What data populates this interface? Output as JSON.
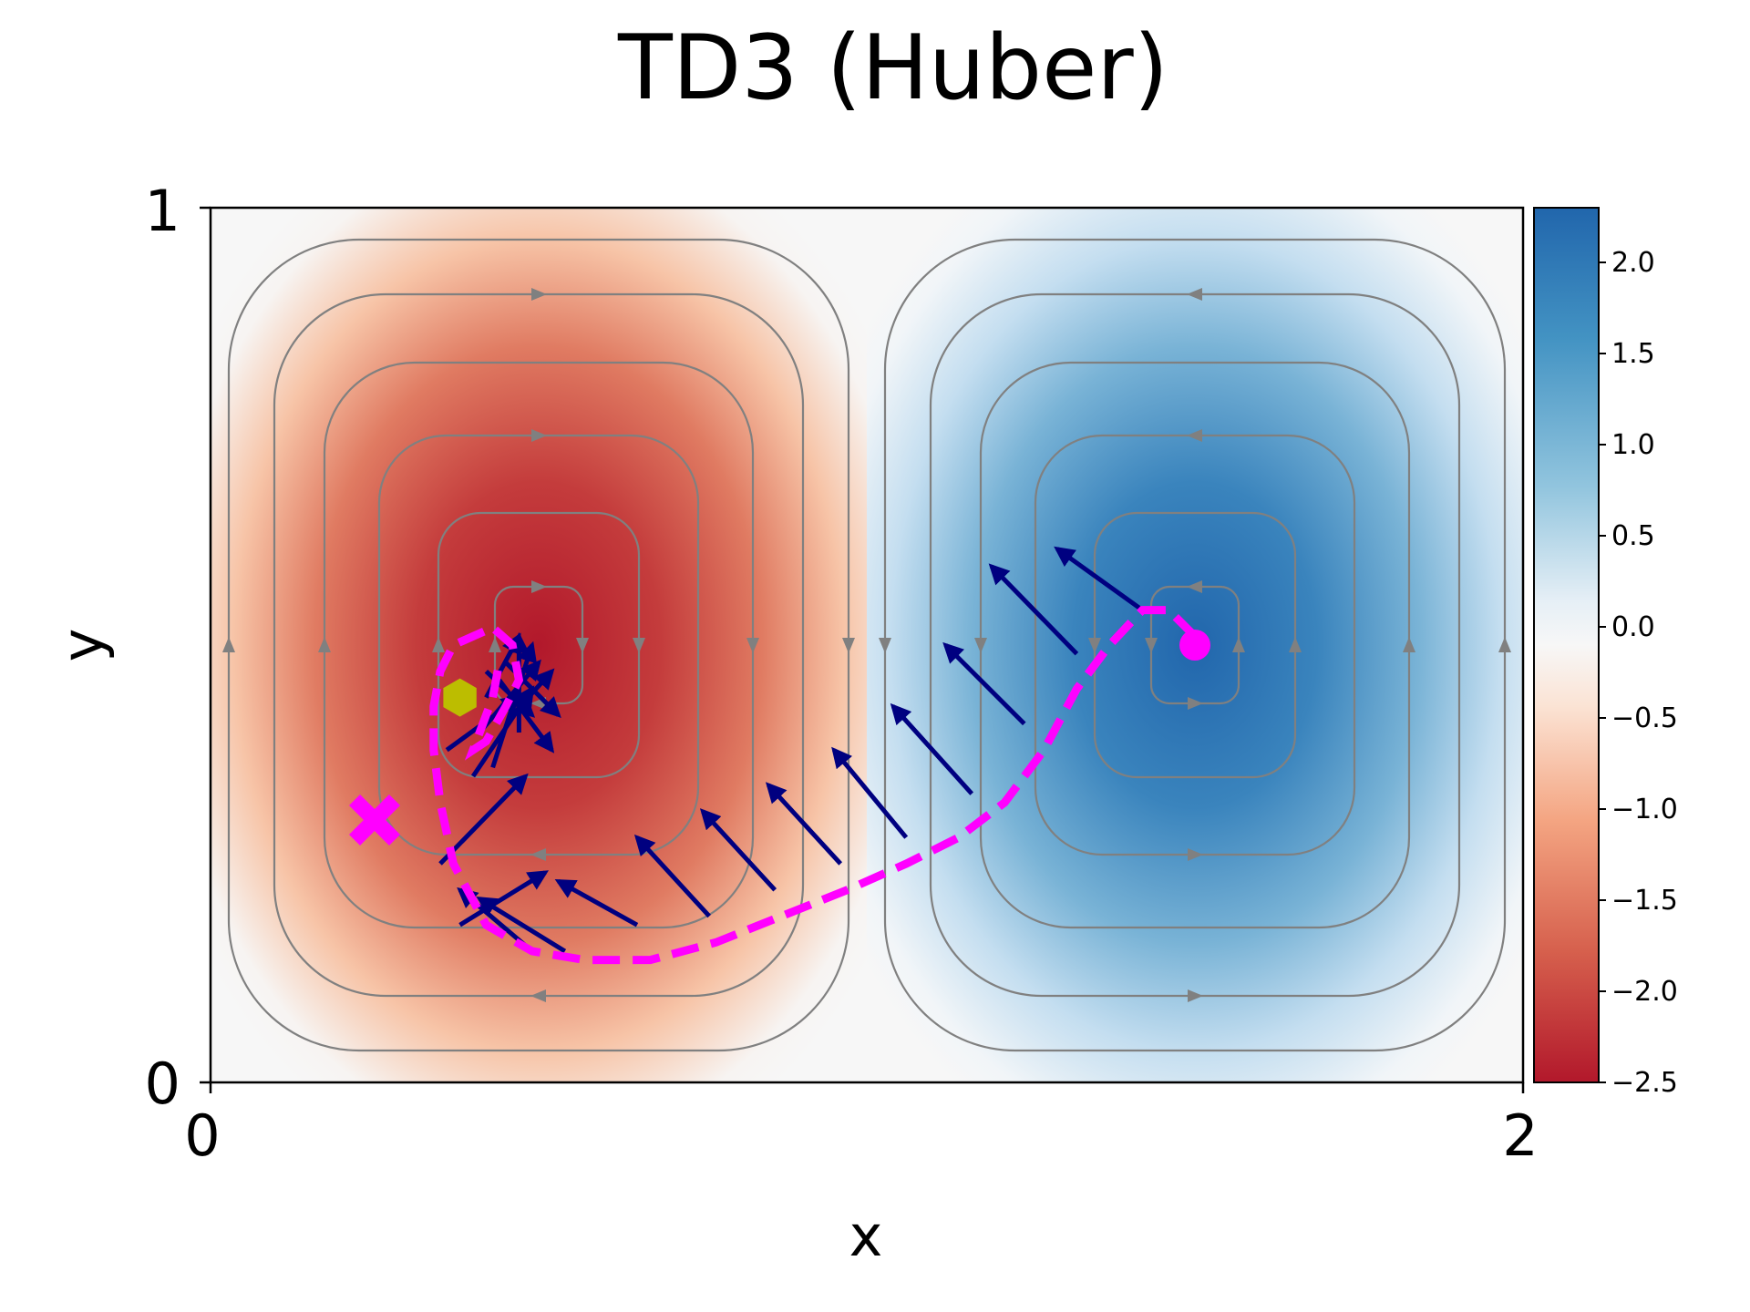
{
  "chart_data": {
    "type": "line",
    "title": "TD3 (Huber)",
    "xlabel": "x",
    "ylabel": "y",
    "xlim": [
      0,
      2
    ],
    "ylim": [
      0,
      1
    ],
    "xticks": [
      "0",
      "2"
    ],
    "yticks": [
      "0",
      "1"
    ],
    "background_field": {
      "kind": "vorticity heatmap with streamlines",
      "cmap": "RdBu",
      "colorbar_range": [
        -2.5,
        2.3
      ],
      "colorbar_ticks": [
        "2.0",
        "1.5",
        "1.0",
        "0.5",
        "0.0",
        "−0.5",
        "−1.0",
        "−1.5",
        "−2.0",
        "−2.5"
      ],
      "colorbar_tick_values": [
        2.0,
        1.5,
        1.0,
        0.5,
        0.0,
        -0.5,
        -1.0,
        -1.5,
        -2.0,
        -2.5
      ],
      "vortex_centers": [
        {
          "x": 0.5,
          "y": 0.5,
          "value": -2.5
        },
        {
          "x": 1.5,
          "y": 0.5,
          "value": 2.3
        }
      ],
      "streamline_color": "#808080"
    },
    "trajectory": {
      "color": "#ff00ff",
      "style": "dashed",
      "x": [
        1.5,
        1.46,
        1.42,
        1.37,
        1.32,
        1.27,
        1.21,
        1.14,
        1.06,
        0.97,
        0.87,
        0.77,
        0.67,
        0.57,
        0.49,
        0.42,
        0.37,
        0.35,
        0.34,
        0.34,
        0.35,
        0.37,
        0.4,
        0.43,
        0.46,
        0.47,
        0.45,
        0.42,
        0.4,
        0.41,
        0.43,
        0.44
      ],
      "y": [
        0.51,
        0.54,
        0.54,
        0.5,
        0.45,
        0.38,
        0.32,
        0.28,
        0.25,
        0.22,
        0.19,
        0.16,
        0.14,
        0.14,
        0.15,
        0.18,
        0.25,
        0.32,
        0.38,
        0.43,
        0.47,
        0.5,
        0.51,
        0.52,
        0.5,
        0.46,
        0.43,
        0.39,
        0.38,
        0.4,
        0.44,
        0.48
      ]
    },
    "action_arrows": {
      "color": "#000080",
      "items": [
        {
          "x0": 1.42,
          "y0": 0.54,
          "x1": 1.29,
          "y1": 0.61
        },
        {
          "x0": 1.32,
          "y0": 0.49,
          "x1": 1.19,
          "y1": 0.59
        },
        {
          "x0": 1.24,
          "y0": 0.41,
          "x1": 1.12,
          "y1": 0.5
        },
        {
          "x0": 1.16,
          "y0": 0.33,
          "x1": 1.04,
          "y1": 0.43
        },
        {
          "x0": 1.06,
          "y0": 0.28,
          "x1": 0.95,
          "y1": 0.38
        },
        {
          "x0": 0.96,
          "y0": 0.25,
          "x1": 0.85,
          "y1": 0.34
        },
        {
          "x0": 0.86,
          "y0": 0.22,
          "x1": 0.75,
          "y1": 0.31
        },
        {
          "x0": 0.76,
          "y0": 0.19,
          "x1": 0.65,
          "y1": 0.28
        },
        {
          "x0": 0.65,
          "y0": 0.18,
          "x1": 0.53,
          "y1": 0.23
        },
        {
          "x0": 0.54,
          "y0": 0.15,
          "x1": 0.41,
          "y1": 0.21
        },
        {
          "x0": 0.49,
          "y0": 0.15,
          "x1": 0.38,
          "y1": 0.22
        },
        {
          "x0": 0.38,
          "y0": 0.18,
          "x1": 0.51,
          "y1": 0.24
        },
        {
          "x0": 0.35,
          "y0": 0.25,
          "x1": 0.48,
          "y1": 0.35
        },
        {
          "x0": 0.36,
          "y0": 0.38,
          "x1": 0.47,
          "y1": 0.44
        },
        {
          "x0": 0.4,
          "y0": 0.35,
          "x1": 0.49,
          "y1": 0.45
        },
        {
          "x0": 0.41,
          "y0": 0.4,
          "x1": 0.5,
          "y1": 0.48
        },
        {
          "x0": 0.42,
          "y0": 0.44,
          "x1": 0.47,
          "y1": 0.51
        },
        {
          "x0": 0.44,
          "y0": 0.46,
          "x1": 0.52,
          "y1": 0.38
        },
        {
          "x0": 0.45,
          "y0": 0.48,
          "x1": 0.53,
          "y1": 0.42
        },
        {
          "x0": 0.46,
          "y0": 0.42,
          "x1": 0.52,
          "y1": 0.47
        },
        {
          "x0": 0.43,
          "y0": 0.36,
          "x1": 0.49,
          "y1": 0.5
        },
        {
          "x0": 0.47,
          "y0": 0.4,
          "x1": 0.47,
          "y1": 0.51
        },
        {
          "x0": 0.42,
          "y0": 0.47,
          "x1": 0.49,
          "y1": 0.42
        }
      ]
    },
    "markers": [
      {
        "role": "start",
        "shape": "circle",
        "color": "#ff00ff",
        "x": 1.5,
        "y": 0.5
      },
      {
        "role": "target",
        "shape": "x",
        "color": "#ff00ff",
        "x": 0.25,
        "y": 0.3
      },
      {
        "role": "agent",
        "shape": "hexagon",
        "color": "#bcbd00",
        "x": 0.38,
        "y": 0.44
      }
    ]
  }
}
